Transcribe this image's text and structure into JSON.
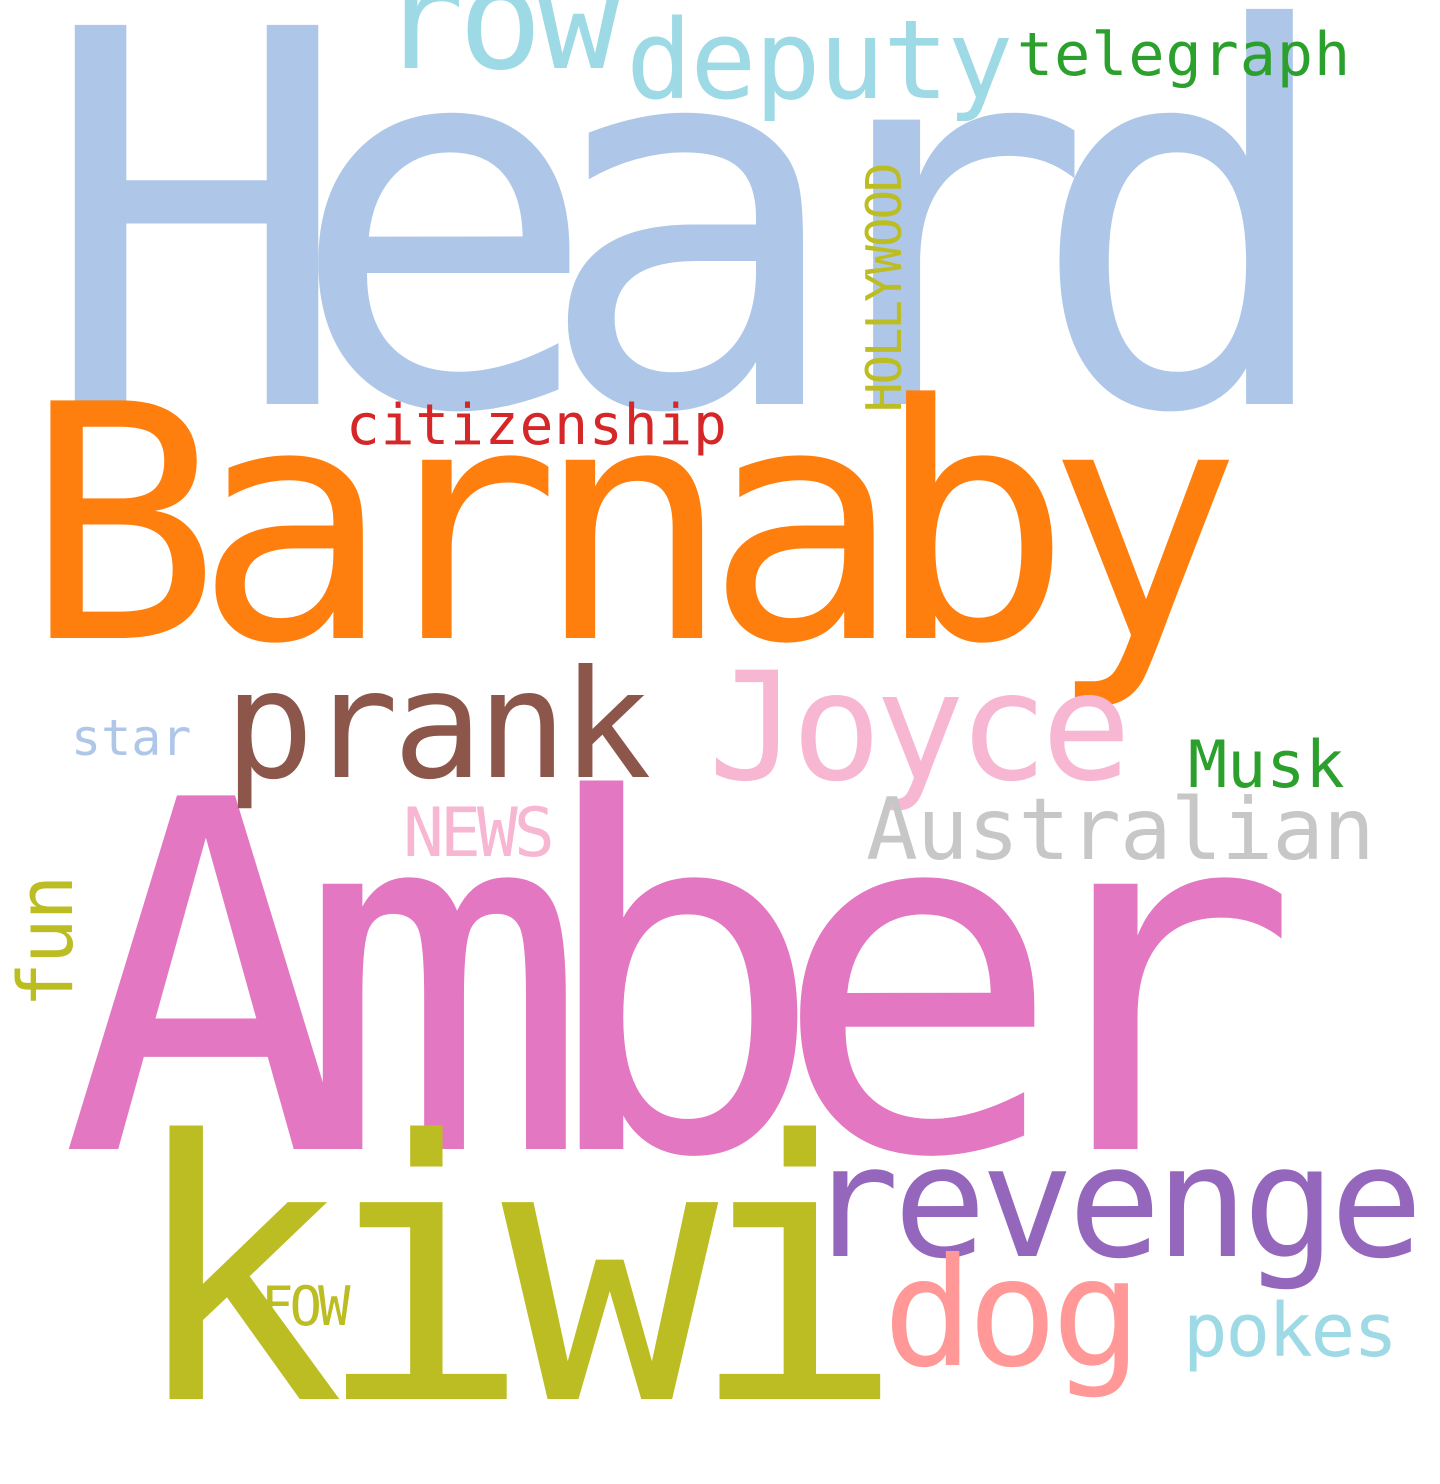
{
  "words": [
    {
      "text": "Heard",
      "color": "#aec7e8",
      "orientation": "horizontal"
    },
    {
      "text": "Barnaby",
      "color": "#ff7f0e",
      "orientation": "horizontal"
    },
    {
      "text": "Amber",
      "color": "#e377c2",
      "orientation": "horizontal"
    },
    {
      "text": "kiwi",
      "color": "#bcbd22",
      "orientation": "horizontal"
    },
    {
      "text": "revenge",
      "color": "#9467bd",
      "orientation": "horizontal"
    },
    {
      "text": "dog",
      "color": "#ff9896",
      "orientation": "horizontal"
    },
    {
      "text": "prank",
      "color": "#8c564b",
      "orientation": "horizontal"
    },
    {
      "text": "Joyce",
      "color": "#f7b6d2",
      "orientation": "horizontal"
    },
    {
      "text": "row",
      "color": "#9edae5",
      "orientation": "horizontal"
    },
    {
      "text": "deputy",
      "color": "#9edae5",
      "orientation": "horizontal"
    },
    {
      "text": "Australian",
      "color": "#c7c7c7",
      "orientation": "horizontal"
    },
    {
      "text": "telegraph",
      "color": "#2ca02c",
      "orientation": "horizontal"
    },
    {
      "text": "citizenship",
      "color": "#d62728",
      "orientation": "horizontal"
    },
    {
      "text": "Musk",
      "color": "#2ca02c",
      "orientation": "horizontal"
    },
    {
      "text": "NEWS",
      "color": "#f7b6d2",
      "orientation": "horizontal"
    },
    {
      "text": "star",
      "color": "#aec7e8",
      "orientation": "horizontal"
    },
    {
      "text": "pokes",
      "color": "#9edae5",
      "orientation": "horizontal"
    },
    {
      "text": "FOW",
      "color": "#bcbd22",
      "orientation": "horizontal"
    },
    {
      "text": "HOLLYWOOD",
      "color": "#bcbd22",
      "orientation": "vertical"
    },
    {
      "text": "fun",
      "color": "#bcbd22",
      "orientation": "vertical"
    }
  ]
}
